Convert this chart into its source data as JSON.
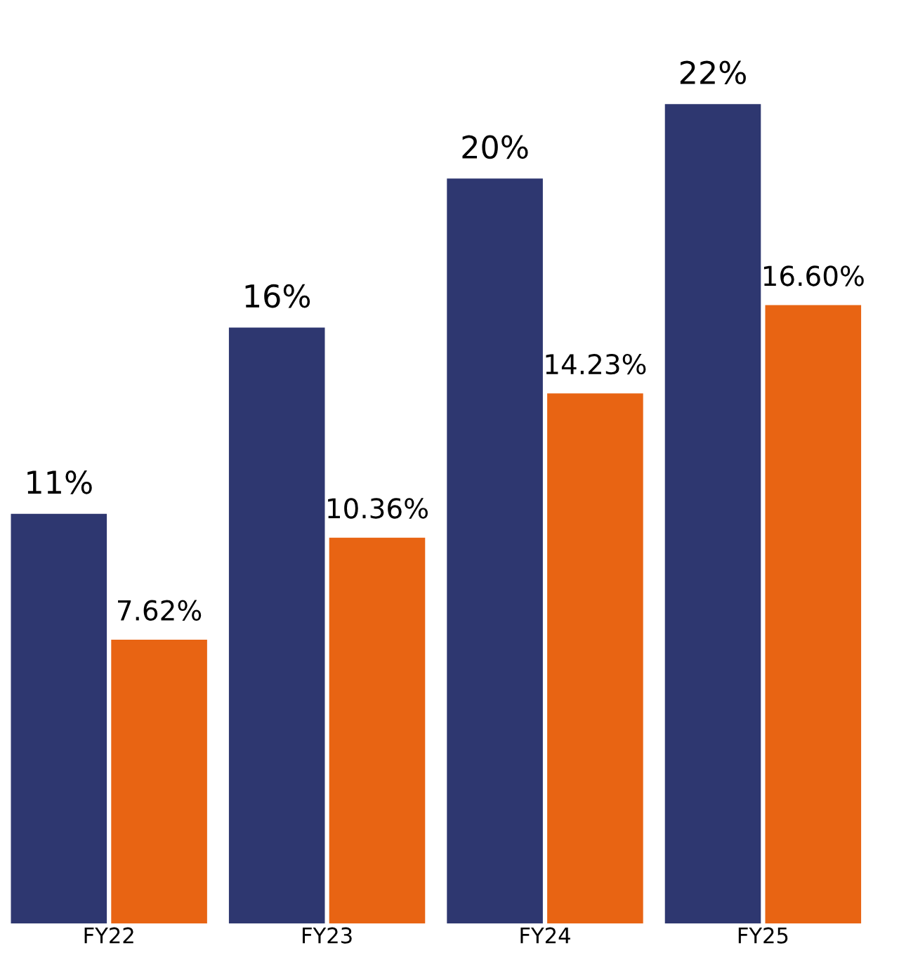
{
  "chart_data": {
    "type": "bar",
    "categories": [
      "FY22",
      "FY23",
      "FY24",
      "FY25"
    ],
    "series": [
      {
        "color": "#2e3770",
        "values": [
          11,
          16,
          20,
          22
        ],
        "value_labels": [
          "11%",
          "16%",
          "20%",
          "22%"
        ]
      },
      {
        "color": "#e86413",
        "values": [
          7.62,
          10.36,
          14.23,
          16.6
        ],
        "value_labels": [
          "7.62%",
          "10.36%",
          "14.23%",
          "16.60%"
        ]
      }
    ],
    "grid": false,
    "legend": false,
    "tick_labels": "x"
  }
}
